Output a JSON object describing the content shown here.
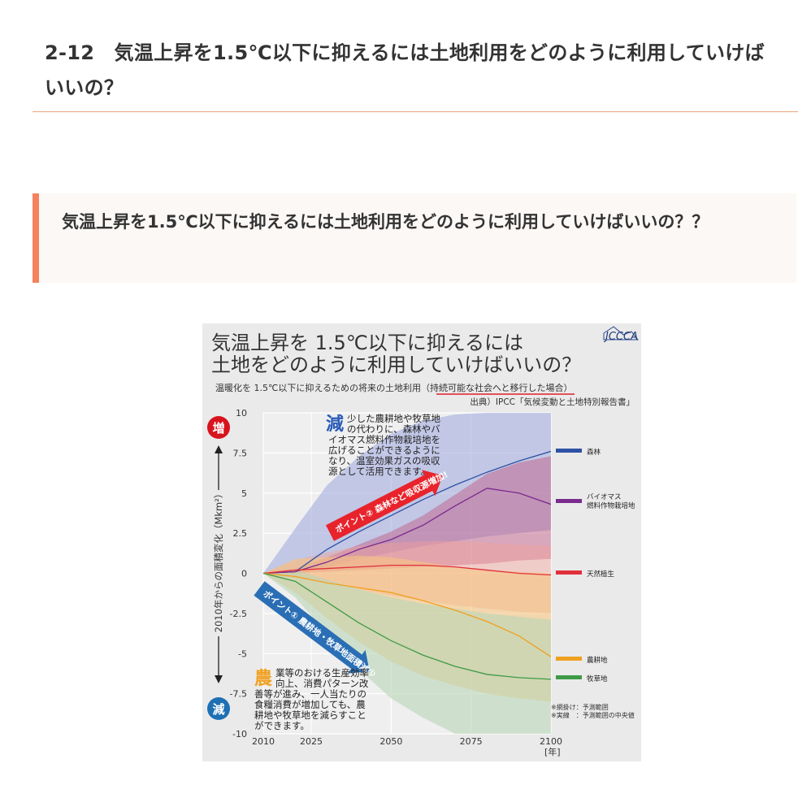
{
  "page": {
    "heading": "2-12　気温上昇を1.5℃以下に抑えるには土地利用をどのように利用していけばいいの？",
    "callout": "気温上昇を1.5℃以下に抑えるには土地利用をどのように利用していけばいいの？？"
  },
  "figure": {
    "title_line1": "気温上昇を 1.5℃以下に抑えるには",
    "title_line2": "土地をどのように利用していけばいいの？",
    "subtitle_prefix": "温暖化を 1.5℃以下に抑えるための将来の土地利用（",
    "subtitle_emph": "持続可能な社会へと移行した場合",
    "subtitle_suffix": "）",
    "source": "出典）IPCC「気候変動と土地特別報告書」",
    "logo": "JCCCA",
    "increase_badge": "増",
    "decrease_badge": "減",
    "point2": "ポイント② 森林など吸収源増加!",
    "point1": "ポイント① 農耕地・牧草地面積減少",
    "annot_top_lead": "減",
    "annot_top_lines": [
      "少した農耕地や牧草地",
      "の代わりに、森林やバ",
      "イオマス燃料作物栽培地を",
      "広げることができるように",
      "なり、温室効果ガスの吸収",
      "源として活用できます。"
    ],
    "annot_bottom_lead": "農",
    "annot_bottom_lines": [
      "業等のおける生産効率",
      "向上、消費パターン改",
      "善等が進み、一人当たりの",
      "食糧消費が増加しても、農",
      "耕地や牧草地を減らすこと",
      "ができます。"
    ],
    "note1": "※網掛け：予測範囲",
    "note2": "※実線　：予測範囲の中央値",
    "colors": {
      "background": "#eaeaea",
      "callout_bar": "#f4825e",
      "heading_rule": "#e8a580",
      "badge_increase": "#d7141e",
      "badge_decrease": "#1f6fb4",
      "subtitle_underline": "#e0202a",
      "point2_arrow": "#e8232b",
      "point1_arrow": "#2a6fb5",
      "annot_top_lead": "#2a5bb8",
      "annot_bottom_lead": "#f0a020"
    }
  },
  "chart_data": {
    "type": "line",
    "xlabel": "[年]",
    "ylabel": "2010年からの面積変化（Mkm²）",
    "xlim": [
      2010,
      2100
    ],
    "ylim": [
      -10,
      10
    ],
    "x_ticks": [
      2010,
      2025,
      2050,
      2075,
      2100
    ],
    "y_ticks": [
      10,
      7.5,
      5,
      2.5,
      0,
      -2.5,
      -5,
      -7.5,
      -10
    ],
    "grid": true,
    "legend_position": "right",
    "x": [
      2010,
      2020,
      2030,
      2040,
      2050,
      2060,
      2070,
      2080,
      2090,
      2100
    ],
    "series": [
      {
        "name": "森林",
        "color": "#2e51a3",
        "band_color": "#9aa6dc",
        "band_opacity": 0.55,
        "values": [
          0,
          0.1,
          1.5,
          2.6,
          3.6,
          4.6,
          5.5,
          6.3,
          7.0,
          7.6
        ],
        "low": [
          0,
          0.0,
          0.4,
          0.9,
          1.3,
          1.7,
          2.0,
          2.3,
          2.5,
          2.7
        ],
        "high": [
          0,
          2.8,
          5.5,
          7.3,
          8.7,
          9.5,
          9.9,
          10.0,
          10.0,
          10.0
        ]
      },
      {
        "name": "バイオマス燃料作物栽培地",
        "color": "#7a2b8e",
        "band_color": "#c15f8a",
        "band_opacity": 0.5,
        "values": [
          0,
          0.1,
          0.7,
          1.5,
          2.1,
          3.0,
          4.2,
          5.3,
          5.0,
          4.3
        ],
        "low": [
          0,
          0.0,
          0.1,
          0.2,
          0.3,
          0.4,
          0.5,
          0.6,
          0.8,
          0.9
        ],
        "high": [
          0,
          0.3,
          1.0,
          1.8,
          2.6,
          3.6,
          4.9,
          6.2,
          6.9,
          7.3
        ]
      },
      {
        "name": "天然植生",
        "color": "#e0303c",
        "band_color": "#f2a29a",
        "band_opacity": 0.45,
        "values": [
          0,
          0.2,
          0.3,
          0.4,
          0.5,
          0.5,
          0.4,
          0.2,
          0.0,
          -0.1
        ],
        "low": [
          0,
          -0.3,
          -0.6,
          -1.0,
          -1.4,
          -1.7,
          -2.0,
          -2.2,
          -2.4,
          -2.5
        ],
        "high": [
          0,
          0.8,
          1.3,
          1.7,
          1.9,
          2.0,
          2.0,
          1.9,
          1.8,
          1.7
        ]
      },
      {
        "name": "農耕地",
        "color": "#f0a020",
        "band_color": "#f7c480",
        "band_opacity": 0.6,
        "values": [
          0,
          -0.2,
          -0.6,
          -0.9,
          -1.2,
          -1.7,
          -2.3,
          -3.0,
          -3.9,
          -5.2
        ],
        "low": [
          0,
          -1.2,
          -2.8,
          -4.3,
          -5.5,
          -6.4,
          -7.0,
          -7.5,
          -7.8,
          -8.0
        ],
        "high": [
          0,
          0.9,
          1.0,
          1.1,
          1.0,
          0.7,
          0.4,
          0.2,
          0.1,
          0.0
        ]
      },
      {
        "name": "牧草地",
        "color": "#3e9a47",
        "band_color": "#b8d6b5",
        "band_opacity": 0.6,
        "values": [
          0,
          -0.5,
          -1.8,
          -3.1,
          -4.2,
          -5.1,
          -5.8,
          -6.3,
          -6.5,
          -6.6
        ],
        "low": [
          0,
          -1.5,
          -3.8,
          -6.0,
          -7.8,
          -9.0,
          -10.0,
          -10.0,
          -10.0,
          -10.0
        ],
        "high": [
          0,
          0.2,
          -0.4,
          -1.0,
          -1.5,
          -1.9,
          -2.2,
          -2.5,
          -2.7,
          -2.9
        ]
      }
    ]
  }
}
